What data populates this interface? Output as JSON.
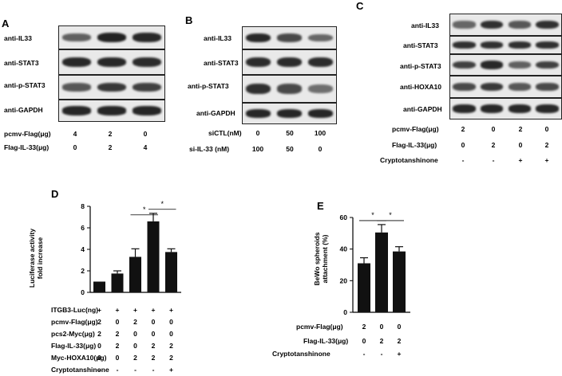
{
  "panels": {
    "A": {
      "letter": "A",
      "blots": [
        {
          "label": "anti-IL33",
          "intensities": [
            0.55,
            0.95,
            0.9
          ]
        },
        {
          "label": "anti-STAT3",
          "intensities": [
            0.9,
            0.9,
            0.88
          ]
        },
        {
          "label": "anti-p-STAT3",
          "intensities": [
            0.6,
            0.8,
            0.75
          ]
        },
        {
          "label": "anti-GAPDH",
          "intensities": [
            0.92,
            0.92,
            0.92
          ]
        }
      ],
      "rows": [
        {
          "label": "pcmv-Flag(μg)",
          "values": [
            "4",
            "2",
            "0"
          ]
        },
        {
          "label": "Flag-IL-33(μg)",
          "values": [
            "0",
            "2",
            "4"
          ]
        }
      ]
    },
    "B": {
      "letter": "B",
      "blots": [
        {
          "label": "anti-IL33",
          "intensities": [
            0.9,
            0.7,
            0.5
          ]
        },
        {
          "label": "anti-STAT3",
          "intensities": [
            0.88,
            0.88,
            0.88
          ]
        },
        {
          "label": "anti-p-STAT3",
          "intensities": [
            0.85,
            0.7,
            0.45
          ]
        },
        {
          "label": "anti-GAPDH",
          "intensities": [
            0.92,
            0.92,
            0.92
          ]
        }
      ],
      "rows": [
        {
          "label": "siCTL(nM)",
          "values": [
            "0",
            "50",
            "100"
          ]
        },
        {
          "label": "si-IL-33 (nM)",
          "values": [
            "100",
            "50",
            "0"
          ]
        }
      ]
    },
    "C": {
      "letter": "C",
      "blots": [
        {
          "label": "anti-IL33",
          "intensities": [
            0.5,
            0.85,
            0.6,
            0.85
          ]
        },
        {
          "label": "anti-STAT3",
          "intensities": [
            0.85,
            0.85,
            0.85,
            0.85
          ]
        },
        {
          "label": "anti-p-STAT3",
          "intensities": [
            0.75,
            0.9,
            0.55,
            0.75
          ]
        },
        {
          "label": "anti-HOXA10",
          "intensities": [
            0.7,
            0.8,
            0.6,
            0.7
          ]
        },
        {
          "label": "anti-GAPDH",
          "intensities": [
            0.9,
            0.9,
            0.9,
            0.9
          ]
        }
      ],
      "rows": [
        {
          "label": "pcmv-Flag(μg)",
          "values": [
            "2",
            "0",
            "2",
            "0"
          ]
        },
        {
          "label": "Flag-IL-33(μg)",
          "values": [
            "0",
            "2",
            "0",
            "2"
          ]
        },
        {
          "label": "Cryptotanshinone",
          "values": [
            "-",
            "-",
            "+",
            "+"
          ]
        }
      ]
    },
    "D": {
      "letter": "D",
      "rows": [
        {
          "label": "ITGB3-Luc(ng)",
          "values": [
            "+",
            "+",
            "+",
            "+",
            "+"
          ]
        },
        {
          "label": "pcmv-Flag(μg)",
          "values": [
            "2",
            "0",
            "2",
            "0",
            "0"
          ]
        },
        {
          "label": "pcs2-Myc(μg)",
          "values": [
            "2",
            "2",
            "0",
            "0",
            "0"
          ]
        },
        {
          "label": "Flag-IL-33(μg)",
          "values": [
            "0",
            "2",
            "0",
            "2",
            "2"
          ]
        },
        {
          "label": "Myc-HOXA10(μg)",
          "values": [
            "0",
            "0",
            "2",
            "2",
            "2"
          ]
        },
        {
          "label": "Cryptotanshinone",
          "values": [
            "-",
            "-",
            "-",
            "-",
            "+"
          ]
        }
      ]
    },
    "E": {
      "letter": "E",
      "rows": [
        {
          "label": "pcmv-Flag(μg)",
          "values": [
            "2",
            "0",
            "0"
          ]
        },
        {
          "label": "Flag-IL-33(μg)",
          "values": [
            "0",
            "2",
            "2"
          ]
        },
        {
          "label": "Cryptotanshinone",
          "values": [
            "-",
            "-",
            "+"
          ]
        }
      ]
    }
  },
  "chart_data": [
    {
      "type": "bar",
      "panel": "D",
      "title": "",
      "ylabel_lines": [
        "Luciferase activity",
        "fold increase"
      ],
      "ylim": [
        0,
        8
      ],
      "yticks": [
        "0",
        "2",
        "4",
        "6",
        "8"
      ],
      "values": [
        1.0,
        1.75,
        3.3,
        6.6,
        3.75
      ],
      "errors": [
        0.0,
        0.25,
        0.75,
        0.75,
        0.3
      ],
      "significance": [
        {
          "from": 2,
          "to": 3,
          "label": "*"
        },
        {
          "from": 3,
          "to": 4,
          "label": "*"
        }
      ]
    },
    {
      "type": "bar",
      "panel": "E",
      "title": "",
      "ylabel_lines": [
        "BeWo spheroids",
        "attachment (%)"
      ],
      "ylim": [
        0,
        60
      ],
      "yticks": [
        "0",
        "20",
        "40",
        "60"
      ],
      "values": [
        31,
        50.5,
        38.5
      ],
      "errors": [
        3.5,
        5.0,
        3.0
      ],
      "significance": [
        {
          "from": 0,
          "to": 1,
          "label": "*"
        },
        {
          "from": 1,
          "to": 2,
          "label": "*"
        }
      ]
    }
  ]
}
